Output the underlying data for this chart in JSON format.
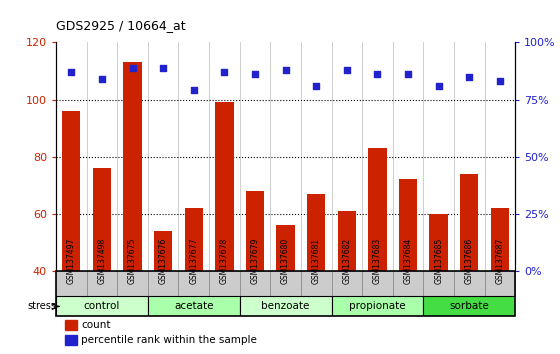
{
  "title": "GDS2925 / 10664_at",
  "samples": [
    "GSM137497",
    "GSM137498",
    "GSM137675",
    "GSM137676",
    "GSM137677",
    "GSM137678",
    "GSM137679",
    "GSM137680",
    "GSM137681",
    "GSM137682",
    "GSM137683",
    "GSM137684",
    "GSM137685",
    "GSM137686",
    "GSM137687"
  ],
  "counts": [
    96,
    76,
    113,
    54,
    62,
    99,
    68,
    56,
    67,
    61,
    83,
    72,
    60,
    74,
    62
  ],
  "percentiles": [
    87,
    84,
    89,
    89,
    79,
    87,
    86,
    88,
    81,
    88,
    86,
    86,
    81,
    85,
    83
  ],
  "ylim_left": [
    40,
    120
  ],
  "ylim_right": [
    0,
    100
  ],
  "yticks_left": [
    40,
    60,
    80,
    100,
    120
  ],
  "yticks_right": [
    0,
    25,
    50,
    75,
    100
  ],
  "bar_color": "#CC2200",
  "dot_color": "#2222CC",
  "groups": [
    {
      "name": "control",
      "indices": [
        0,
        1,
        2
      ],
      "color": "#ccffcc"
    },
    {
      "name": "acetate",
      "indices": [
        3,
        4,
        5
      ],
      "color": "#aaffaa"
    },
    {
      "name": "benzoate",
      "indices": [
        6,
        7,
        8
      ],
      "color": "#ccffcc"
    },
    {
      "name": "propionate",
      "indices": [
        9,
        10,
        11
      ],
      "color": "#aaffaa"
    },
    {
      "name": "sorbate",
      "indices": [
        12,
        13,
        14
      ],
      "color": "#44dd44"
    }
  ],
  "stress_label": "stress",
  "legend_count": "count",
  "legend_pct": "percentile rank within the sample",
  "tick_label_bg": "#cccccc",
  "plot_bg": "#ffffff",
  "dotted_lines": [
    60,
    80,
    100
  ]
}
